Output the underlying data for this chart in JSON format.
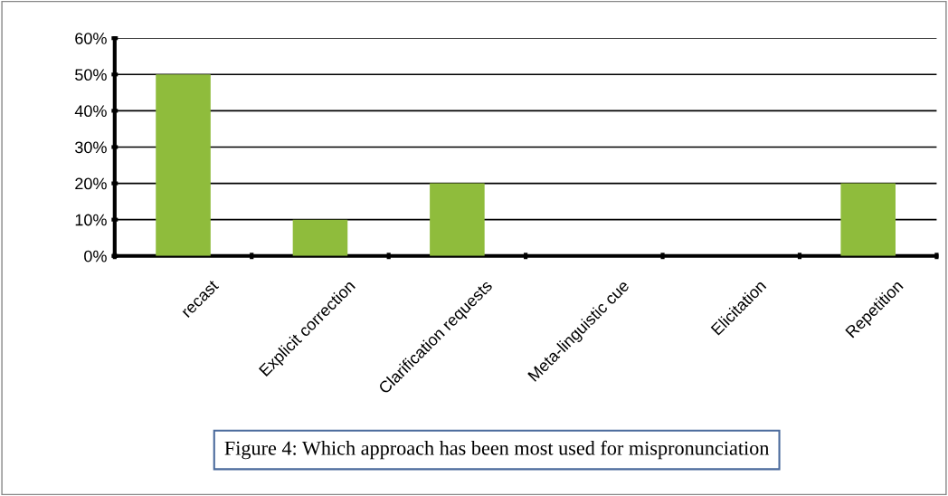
{
  "chart_data": {
    "type": "bar",
    "title": "Figure 4: Which approach has been most used for mispronunciation",
    "categories": [
      "recast",
      "Explicit correction",
      "Clarification requests",
      "Meta-linguistic cue",
      "Elicitation",
      "Repetition"
    ],
    "values": [
      50,
      10,
      20,
      0,
      0,
      20
    ],
    "color": "#8fbc3c",
    "ylim": [
      0,
      60
    ],
    "yticks": [
      {
        "value": 0,
        "label": "0%"
      },
      {
        "value": 10,
        "label": "10%"
      },
      {
        "value": 20,
        "label": "20%"
      },
      {
        "value": 30,
        "label": "30%"
      },
      {
        "value": 40,
        "label": "40%"
      },
      {
        "value": 50,
        "label": "50%"
      },
      {
        "value": 60,
        "label": "60%"
      }
    ],
    "grid": "y"
  }
}
